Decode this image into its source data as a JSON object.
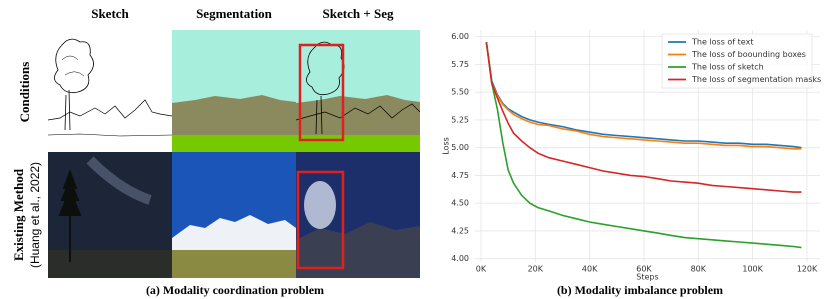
{
  "figure": {
    "columns": [
      "Sketch",
      "Segmentation",
      "Sketch + Seg"
    ],
    "rows": [
      "Conditions",
      "Existing Method",
      "(Huang et al., 2022)"
    ],
    "captions": [
      "(a) Modality coordination problem",
      "(b) Modality imbalance problem"
    ]
  },
  "chart_data": {
    "type": "line",
    "xlabel": "Steps",
    "ylabel": "Loss",
    "x": [
      2000,
      4000,
      6000,
      8000,
      10000,
      12000,
      15000,
      18000,
      21000,
      25000,
      30000,
      35000,
      40000,
      45000,
      50000,
      55000,
      60000,
      65000,
      70000,
      75000,
      80000,
      85000,
      90000,
      95000,
      100000,
      105000,
      110000,
      115000,
      118000
    ],
    "series": [
      {
        "name": "The loss of text",
        "color": "#1f77b4",
        "values": [
          5.95,
          5.6,
          5.48,
          5.4,
          5.35,
          5.32,
          5.28,
          5.25,
          5.23,
          5.21,
          5.19,
          5.16,
          5.14,
          5.12,
          5.11,
          5.1,
          5.09,
          5.08,
          5.07,
          5.06,
          5.06,
          5.05,
          5.04,
          5.04,
          5.03,
          5.03,
          5.02,
          5.01,
          5.0
        ]
      },
      {
        "name": "The loss of boounding boxes",
        "color": "#ff7f0e",
        "values": [
          5.95,
          5.58,
          5.47,
          5.39,
          5.34,
          5.3,
          5.26,
          5.23,
          5.21,
          5.2,
          5.17,
          5.15,
          5.12,
          5.1,
          5.09,
          5.08,
          5.07,
          5.06,
          5.05,
          5.04,
          5.04,
          5.03,
          5.02,
          5.02,
          5.01,
          5.01,
          5.0,
          4.99,
          4.99
        ]
      },
      {
        "name": "The loss of sketch",
        "color": "#2ca02c",
        "values": [
          5.95,
          5.58,
          5.35,
          5.05,
          4.8,
          4.68,
          4.57,
          4.5,
          4.46,
          4.43,
          4.39,
          4.36,
          4.33,
          4.31,
          4.29,
          4.27,
          4.25,
          4.23,
          4.21,
          4.19,
          4.18,
          4.17,
          4.16,
          4.15,
          4.14,
          4.13,
          4.12,
          4.11,
          4.1
        ]
      },
      {
        "name": "The loss of segmentation masks",
        "color": "#d62728",
        "values": [
          5.95,
          5.58,
          5.45,
          5.33,
          5.22,
          5.13,
          5.06,
          5.0,
          4.95,
          4.91,
          4.88,
          4.85,
          4.82,
          4.79,
          4.77,
          4.75,
          4.74,
          4.72,
          4.7,
          4.69,
          4.68,
          4.66,
          4.65,
          4.64,
          4.63,
          4.62,
          4.61,
          4.6,
          4.6
        ]
      }
    ],
    "xlim": [
      -2200,
      124800
    ],
    "ylim": [
      3.97,
      6.06
    ],
    "xticks": [
      {
        "value": 0,
        "label": "0K"
      },
      {
        "value": 20000,
        "label": "20K"
      },
      {
        "value": 40000,
        "label": "40K"
      },
      {
        "value": 60000,
        "label": "60K"
      },
      {
        "value": 80000,
        "label": "80K"
      },
      {
        "value": 100000,
        "label": "100K"
      },
      {
        "value": 120000,
        "label": "120K"
      }
    ],
    "yticks": [
      {
        "value": 4,
        "label": "4.00"
      },
      {
        "value": 4.25,
        "label": "4.25"
      },
      {
        "value": 4.5,
        "label": "4.50"
      },
      {
        "value": 4.75,
        "label": "4.75"
      },
      {
        "value": 5,
        "label": "5.00"
      },
      {
        "value": 5.25,
        "label": "5.25"
      },
      {
        "value": 5.5,
        "label": "5.50"
      },
      {
        "value": 5.75,
        "label": "5.75"
      },
      {
        "value": 6,
        "label": "6.00"
      }
    ],
    "grid": true,
    "legend": "upper right"
  }
}
